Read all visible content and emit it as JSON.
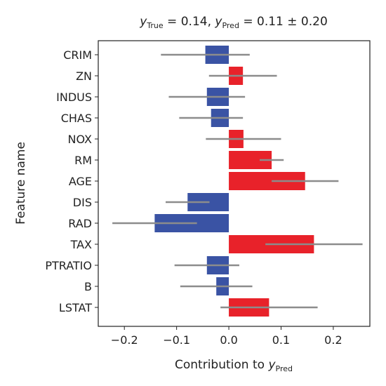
{
  "chart_data": {
    "type": "bar",
    "orientation": "horizontal",
    "title": {
      "true_sym": "y",
      "true_sub": "True",
      "true_val": "0.14",
      "pred_sym": "y",
      "pred_sub": "Pred",
      "pred_val": "0.11",
      "pred_err": "0.20"
    },
    "xlabel": {
      "text": "Contribution to ",
      "sym": "y",
      "sub": "Pred"
    },
    "ylabel": "Feature name",
    "categories": [
      "CRIM",
      "ZN",
      "INDUS",
      "CHAS",
      "NOX",
      "RM",
      "AGE",
      "DIS",
      "RAD",
      "TAX",
      "PTRATIO",
      "B",
      "LSTAT"
    ],
    "values": [
      -0.045,
      0.027,
      -0.042,
      -0.034,
      0.028,
      0.082,
      0.146,
      -0.079,
      -0.142,
      0.163,
      -0.042,
      -0.024,
      0.077
    ],
    "errors": [
      0.085,
      0.065,
      0.073,
      0.061,
      0.072,
      0.023,
      0.064,
      0.042,
      0.081,
      0.093,
      0.062,
      0.069,
      0.093
    ],
    "xlim": [
      -0.25,
      0.27
    ],
    "xticks": [
      -0.2,
      -0.1,
      0.0,
      0.1,
      0.2
    ],
    "xtick_labels": [
      "−0.2",
      "−0.1",
      "0.0",
      "0.1",
      "0.2"
    ],
    "colors": {
      "positive": "#e8222a",
      "negative": "#3a53a4",
      "error_bar": "#8c8c8c"
    },
    "grid": false,
    "legend": "none"
  }
}
